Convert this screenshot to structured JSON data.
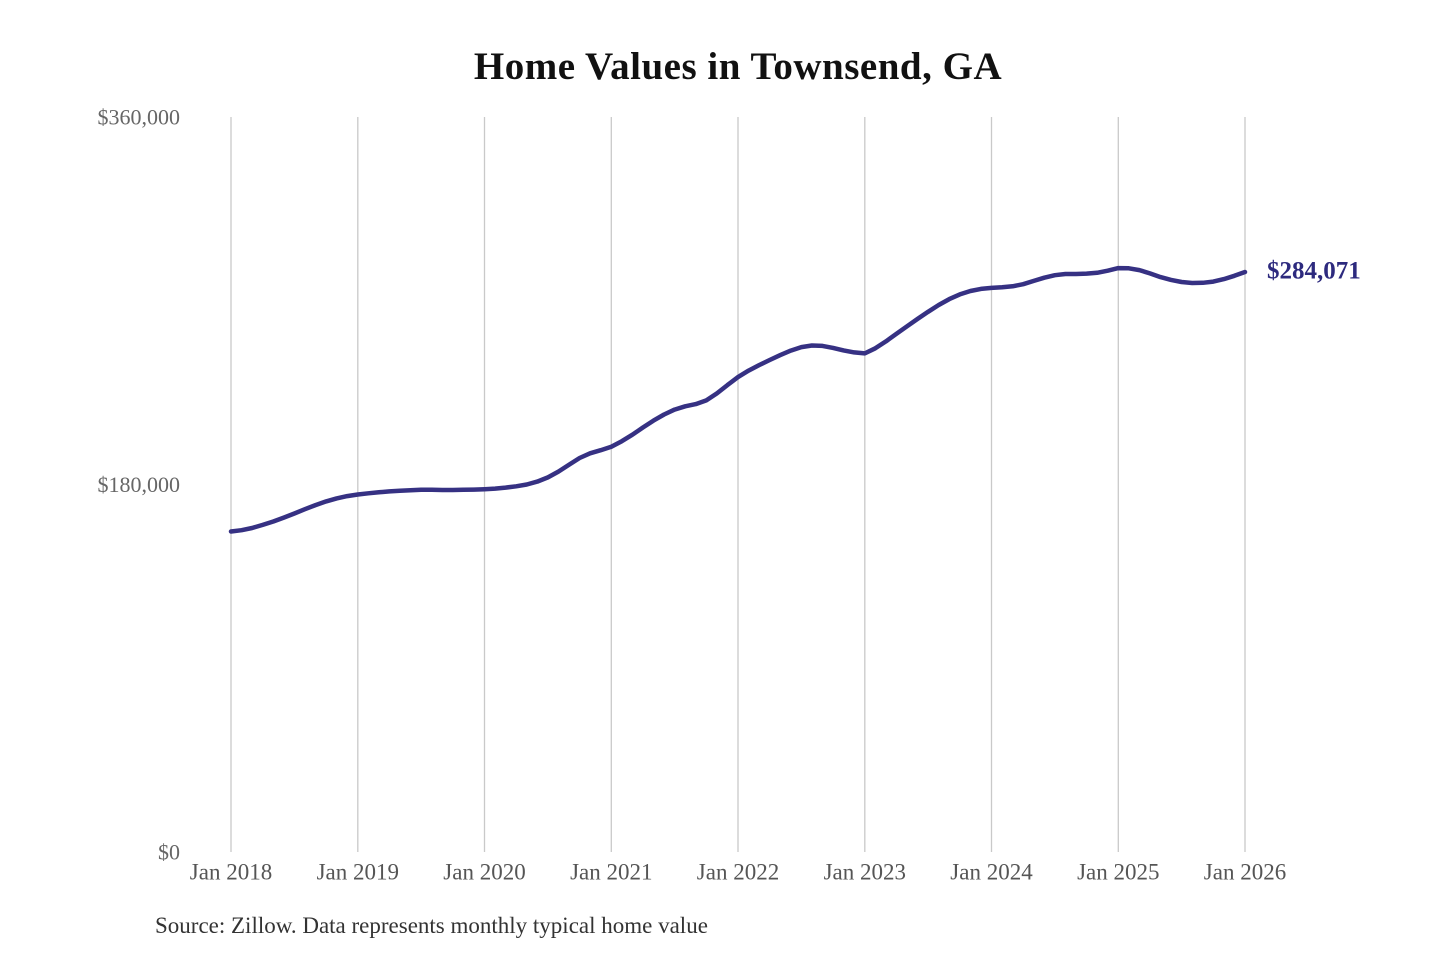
{
  "chart_data": {
    "type": "line",
    "title": "Home Values in Townsend, GA",
    "source_note": "Source: Zillow. Data represents monthly typical home value",
    "series_name": "Monthly typical home value",
    "x_start": "2018-01",
    "x_frequency": "monthly",
    "x_tick_labels": [
      "Jan 2018",
      "Jan 2019",
      "Jan 2020",
      "Jan 2021",
      "Jan 2022",
      "Jan 2023",
      "Jan 2024",
      "Jan 2025",
      "Jan 2026"
    ],
    "y_tick_labels": [
      {
        "label": "$0",
        "value": 0
      },
      {
        "label": "$180,000",
        "value": 180000
      },
      {
        "label": "$360,000",
        "value": 360000
      }
    ],
    "ylim": [
      0,
      360000
    ],
    "grid": "vertical-only",
    "legend": "none",
    "end_value": 284071,
    "end_value_label": "$284,071",
    "values": [
      157000,
      157600,
      158700,
      160200,
      161900,
      163800,
      165800,
      167900,
      169900,
      171700,
      173200,
      174300,
      175100,
      175700,
      176200,
      176600,
      176900,
      177200,
      177400,
      177400,
      177300,
      177300,
      177400,
      177500,
      177700,
      178000,
      178500,
      179100,
      180000,
      181400,
      183500,
      186300,
      189700,
      193000,
      195300,
      196800,
      198500,
      201200,
      204400,
      207900,
      211300,
      214300,
      216700,
      218300,
      219400,
      221200,
      224600,
      228700,
      232600,
      235800,
      238500,
      241000,
      243400,
      245600,
      247300,
      248100,
      247900,
      246900,
      245700,
      244700,
      244200,
      246700,
      250100,
      253800,
      257500,
      261100,
      264600,
      267900,
      270800,
      273100,
      274800,
      275800,
      276300,
      276600,
      277100,
      278100,
      279700,
      281300,
      282500,
      283100,
      283100,
      283300,
      283700,
      284700,
      286000,
      285900,
      285000,
      283400,
      281600,
      280200,
      279200,
      278700,
      278800,
      279400,
      280600,
      282200,
      284071
    ],
    "colors": {
      "line": "#363183",
      "end_label": "#2d2a7e",
      "grid": "#c9c9c9",
      "title": "#111111",
      "x_axis_labels": "#555555",
      "y_axis_labels": "#666666",
      "source": "#333333",
      "background": "#ffffff"
    }
  }
}
